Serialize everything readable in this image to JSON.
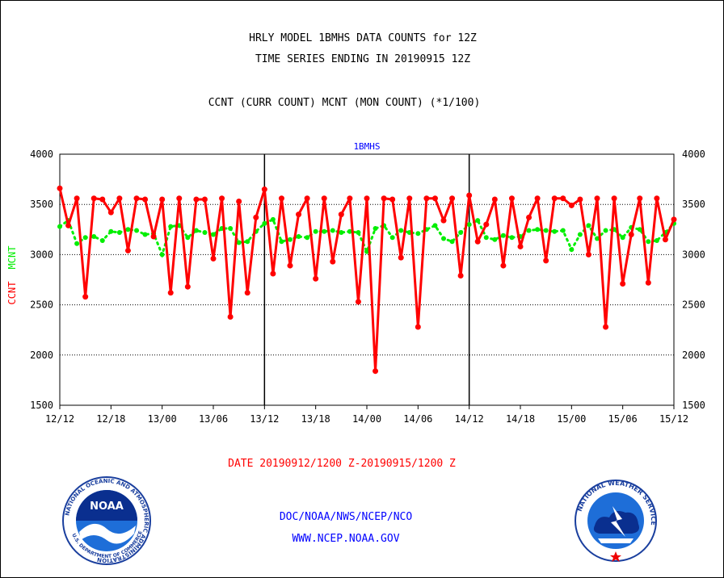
{
  "header": {
    "title_line1": "HRLY MODEL 1BMHS DATA COUNTS for 12Z",
    "title_line2": "TIME SERIES ENDING IN 20190915 12Z",
    "subtitle": "CCNT (CURR COUNT) MCNT (MON COUNT) (*1/100)"
  },
  "footer": {
    "date_range": "DATE 20190912/1200 Z-20190915/1200 Z",
    "org": "DOC/NOAA/NWS/NCEP/NCO",
    "url": "WWW.NCEP.NOAA.GOV"
  },
  "logos": {
    "noaa_text": "NOAA",
    "noaa_ring": "NATIONAL OCEANIC AND ATMOSPHERIC ADMINISTRATION",
    "noaa_ring_bottom": "U.S. DEPARTMENT OF COMMERCE",
    "nws_ring": "NATIONAL WEATHER SERVICE"
  },
  "colors": {
    "ccnt": "#ff0000",
    "mcnt": "#00ee00",
    "label_blue": "#0000ff"
  },
  "chart_data": {
    "type": "line",
    "panel_label": "1BMHS",
    "ylabel_ccnt": "CCNT",
    "ylabel_mcnt": "MCNT",
    "ylim": [
      1500,
      4000
    ],
    "yticks": [
      "1500",
      "2000",
      "2500",
      "3000",
      "3500",
      "4000"
    ],
    "xlim_hours": [
      0,
      72
    ],
    "xticks": [
      "12/12",
      "12/18",
      "13/00",
      "13/06",
      "13/12",
      "13/18",
      "14/00",
      "14/06",
      "14/12",
      "14/18",
      "15/00",
      "15/06",
      "15/12"
    ],
    "day_boundaries_hours": [
      24,
      48
    ],
    "grid": "horizontal dotted",
    "series": [
      {
        "name": "CCNT",
        "style": "solid line with markers",
        "values": [
          3660,
          3290,
          3560,
          2580,
          3560,
          3550,
          3420,
          3560,
          3040,
          3560,
          3550,
          3180,
          3550,
          2620,
          3560,
          2680,
          3550,
          3550,
          2960,
          3560,
          2380,
          3530,
          2620,
          3370,
          3650,
          2810,
          3560,
          2890,
          3400,
          3560,
          2760,
          3560,
          2930,
          3400,
          3560,
          2530,
          3560,
          1840,
          3560,
          3550,
          2970,
          3560,
          2280,
          3560,
          3560,
          3340,
          3560,
          2790,
          3590,
          3130,
          3300,
          3550,
          2890,
          3560,
          3080,
          3370,
          3560,
          2940,
          3560,
          3560,
          3490,
          3550,
          3000,
          3560,
          2280,
          3560,
          2710,
          3200,
          3560,
          2720,
          3560,
          3150,
          3350
        ]
      },
      {
        "name": "MCNT",
        "style": "dotted line with markers",
        "values": [
          3280,
          3340,
          3110,
          3170,
          3180,
          3140,
          3230,
          3220,
          3250,
          3240,
          3200,
          3210,
          3000,
          3280,
          3290,
          3170,
          3240,
          3220,
          3200,
          3260,
          3260,
          3120,
          3130,
          3230,
          3310,
          3350,
          3130,
          3150,
          3180,
          3170,
          3230,
          3230,
          3240,
          3220,
          3230,
          3220,
          3030,
          3260,
          3290,
          3170,
          3240,
          3220,
          3210,
          3250,
          3290,
          3160,
          3130,
          3220,
          3300,
          3340,
          3170,
          3150,
          3190,
          3170,
          3180,
          3240,
          3250,
          3240,
          3230,
          3240,
          3050,
          3200,
          3290,
          3160,
          3240,
          3250,
          3170,
          3270,
          3250,
          3130,
          3140,
          3220,
          3310
        ]
      }
    ]
  }
}
